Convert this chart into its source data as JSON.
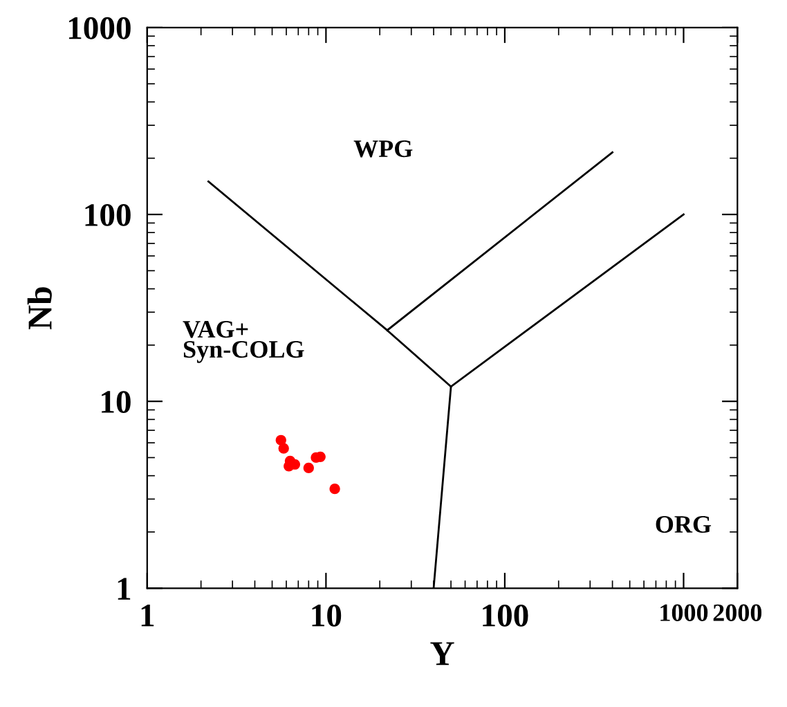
{
  "chart_data": {
    "type": "scatter",
    "xlabel": "Y",
    "ylabel": "Nb",
    "log": "xy",
    "xlim": [
      1,
      2000
    ],
    "ylim": [
      1,
      1000
    ],
    "xticks": [
      1,
      10,
      100,
      1000,
      2000
    ],
    "yticks": [
      1,
      10,
      100,
      1000
    ],
    "series": [
      {
        "marker": "circle",
        "color": "#ff0000",
        "x": [
          5.6,
          5.8,
          6.3,
          6.2,
          6.7,
          8.0,
          8.8,
          9.3,
          11.2
        ],
        "values": [
          6.2,
          5.6,
          4.8,
          4.5,
          4.6,
          4.4,
          5.0,
          5.05,
          3.4
        ]
      },
      {
        "type": "line",
        "marker": "none",
        "color": "#000000",
        "x": [
          2.2,
          22,
          50
        ],
        "values": [
          150,
          24,
          12
        ]
      },
      {
        "type": "line",
        "marker": "none",
        "color": "#000000",
        "x": [
          22,
          400
        ],
        "values": [
          24,
          215
        ]
      },
      {
        "type": "line",
        "marker": "none",
        "color": "#000000",
        "x": [
          50,
          1000
        ],
        "values": [
          12,
          100
        ]
      },
      {
        "type": "line",
        "marker": "none",
        "color": "#000000",
        "x": [
          50,
          40
        ],
        "values": [
          12,
          1
        ]
      }
    ],
    "annotations": [
      "WPG",
      "VAG+\nSyn-COLG",
      "ORG"
    ]
  }
}
